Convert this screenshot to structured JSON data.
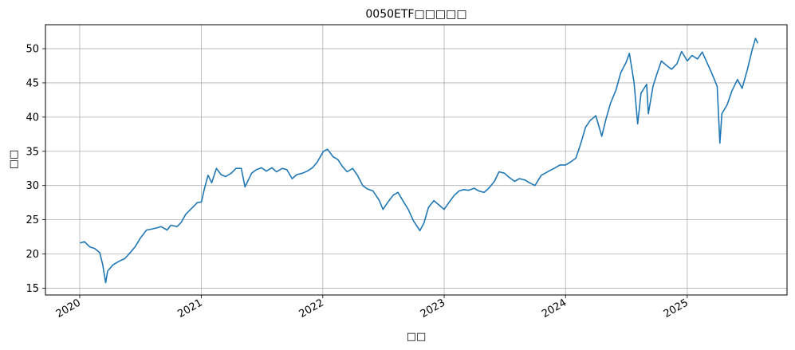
{
  "chart_data": {
    "type": "line",
    "title": "0050ETF□□□□□",
    "xlabel": "□□",
    "ylabel": "□□",
    "x_tick_labels": [
      "2020",
      "2021",
      "2022",
      "2023",
      "2024",
      "2025"
    ],
    "y_tick_labels": [
      "15",
      "20",
      "25",
      "30",
      "35",
      "40",
      "45",
      "50"
    ],
    "xlim": [
      "2019-09-20",
      "2025-10-28"
    ],
    "ylim": [
      14,
      53.5
    ],
    "grid": true,
    "colors": {
      "line": "#1f77b4",
      "grid": "#b0b0b0",
      "axes": "#000000"
    },
    "series": [
      {
        "x": [
          "2020-01-02",
          "2020-01-15",
          "2020-02-01",
          "2020-02-15",
          "2020-03-01",
          "2020-03-10",
          "2020-03-19",
          "2020-03-25",
          "2020-04-10",
          "2020-05-01",
          "2020-05-15",
          "2020-06-01",
          "2020-06-15",
          "2020-07-01",
          "2020-07-20",
          "2020-08-01",
          "2020-08-20",
          "2020-09-01",
          "2020-09-20",
          "2020-10-01",
          "2020-10-20",
          "2020-11-01",
          "2020-11-15",
          "2020-12-01",
          "2020-12-20",
          "2021-01-01",
          "2021-01-10",
          "2021-01-21",
          "2021-02-01",
          "2021-02-15",
          "2021-03-01",
          "2021-03-15",
          "2021-04-01",
          "2021-04-15",
          "2021-05-01",
          "2021-05-12",
          "2021-05-20",
          "2021-06-01",
          "2021-06-15",
          "2021-07-01",
          "2021-07-15",
          "2021-08-01",
          "2021-08-15",
          "2021-09-01",
          "2021-09-15",
          "2021-10-01",
          "2021-10-15",
          "2021-11-01",
          "2021-11-15",
          "2021-12-01",
          "2021-12-15",
          "2022-01-03",
          "2022-01-15",
          "2022-02-01",
          "2022-02-15",
          "2022-03-01",
          "2022-03-15",
          "2022-04-01",
          "2022-04-15",
          "2022-05-01",
          "2022-05-15",
          "2022-06-01",
          "2022-06-20",
          "2022-07-01",
          "2022-07-15",
          "2022-08-01",
          "2022-08-15",
          "2022-09-01",
          "2022-09-15",
          "2022-10-01",
          "2022-10-20",
          "2022-11-01",
          "2022-11-15",
          "2022-12-01",
          "2022-12-20",
          "2023-01-01",
          "2023-01-15",
          "2023-02-01",
          "2023-02-15",
          "2023-03-01",
          "2023-03-15",
          "2023-04-01",
          "2023-04-15",
          "2023-05-01",
          "2023-05-15",
          "2023-06-01",
          "2023-06-15",
          "2023-07-01",
          "2023-07-15",
          "2023-08-01",
          "2023-08-15",
          "2023-09-01",
          "2023-09-15",
          "2023-10-01",
          "2023-10-20",
          "2023-11-01",
          "2023-11-15",
          "2023-12-01",
          "2023-12-15",
          "2024-01-01",
          "2024-01-15",
          "2024-02-01",
          "2024-02-15",
          "2024-03-01",
          "2024-03-15",
          "2024-04-01",
          "2024-04-19",
          "2024-05-01",
          "2024-05-15",
          "2024-06-01",
          "2024-06-15",
          "2024-07-01",
          "2024-07-11",
          "2024-07-25",
          "2024-08-05",
          "2024-08-15",
          "2024-09-01",
          "2024-09-06",
          "2024-09-20",
          "2024-10-01",
          "2024-10-15",
          "2024-11-01",
          "2024-11-15",
          "2024-12-01",
          "2024-12-15",
          "2025-01-01",
          "2025-01-15",
          "2025-02-01",
          "2025-02-15",
          "2025-03-01",
          "2025-03-15",
          "2025-04-01",
          "2025-04-09",
          "2025-04-15",
          "2025-05-01",
          "2025-05-15",
          "2025-06-01",
          "2025-06-15",
          "2025-07-01",
          "2025-07-15",
          "2025-07-25",
          "2025-08-01"
        ],
        "y": [
          21.6,
          21.8,
          21.0,
          20.8,
          20.2,
          18.5,
          15.8,
          17.5,
          18.4,
          19.0,
          19.3,
          20.2,
          21.0,
          22.3,
          23.5,
          23.6,
          23.8,
          24.0,
          23.5,
          24.2,
          24.0,
          24.6,
          25.8,
          26.6,
          27.5,
          27.6,
          29.5,
          31.5,
          30.4,
          32.5,
          31.6,
          31.3,
          31.8,
          32.5,
          32.5,
          29.8,
          30.6,
          31.8,
          32.3,
          32.6,
          32.1,
          32.6,
          32.0,
          32.5,
          32.3,
          31.0,
          31.6,
          31.8,
          32.1,
          32.6,
          33.4,
          35.0,
          35.3,
          34.2,
          33.8,
          32.8,
          32.0,
          32.5,
          31.5,
          30.0,
          29.5,
          29.2,
          27.8,
          26.5,
          27.5,
          28.6,
          29.0,
          27.6,
          26.5,
          24.8,
          23.4,
          24.5,
          26.8,
          27.8,
          27.0,
          26.5,
          27.5,
          28.6,
          29.2,
          29.4,
          29.3,
          29.6,
          29.2,
          29.0,
          29.6,
          30.6,
          32.0,
          31.8,
          31.2,
          30.6,
          31.0,
          30.8,
          30.4,
          30.0,
          31.5,
          31.8,
          32.2,
          32.6,
          33.0,
          33.0,
          33.4,
          34.0,
          36.0,
          38.5,
          39.5,
          40.2,
          37.2,
          39.6,
          42.0,
          44.0,
          46.5,
          48.0,
          49.3,
          45.0,
          39.0,
          43.5,
          44.8,
          40.5,
          44.5,
          46.2,
          48.2,
          47.5,
          47.0,
          47.8,
          49.6,
          48.2,
          49.0,
          48.5,
          49.5,
          48.0,
          46.5,
          44.5,
          36.2,
          40.5,
          41.8,
          43.8,
          45.5,
          44.2,
          47.0,
          49.8,
          51.5,
          50.8
        ]
      }
    ]
  }
}
